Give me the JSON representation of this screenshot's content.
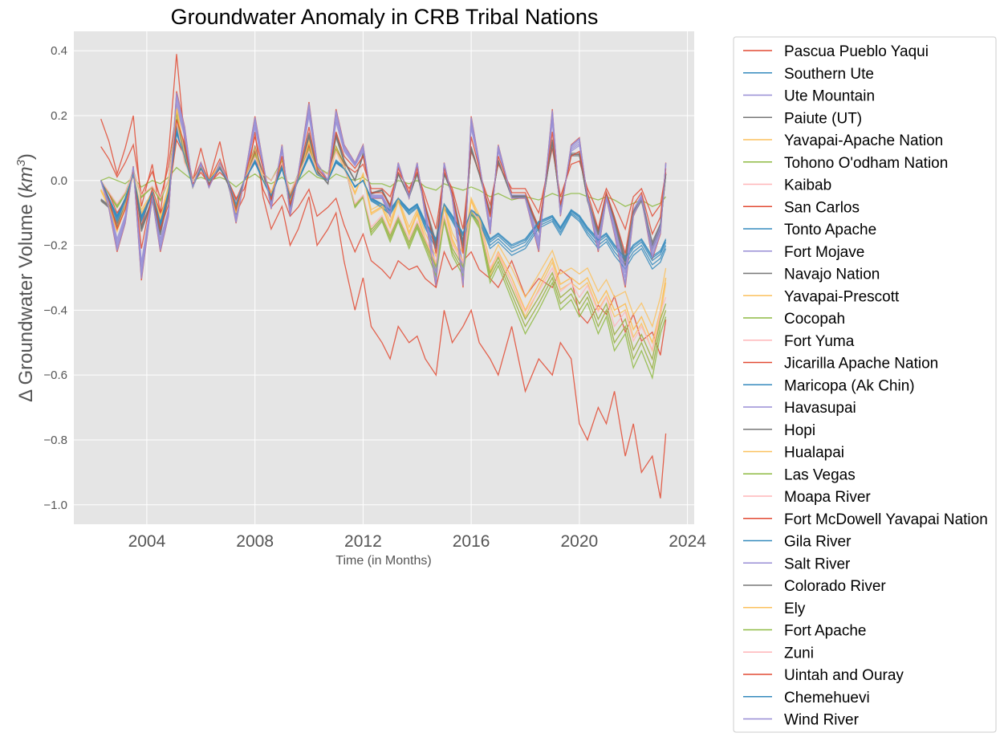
{
  "chart_data": {
    "type": "line",
    "title": "Groundwater Anomaly in CRB Tribal Nations",
    "ylabel_text": "Δ Groundwater Volume (",
    "ylabel_unit": "km",
    "ylabel_exp": "3",
    "ylabel_close": ")",
    "xlabel": "Time (in Months)",
    "xlim": [
      2001.3,
      2024.25
    ],
    "ylim": [
      -1.06,
      0.46
    ],
    "xticks": [
      2004,
      2008,
      2012,
      2016,
      2020,
      2024
    ],
    "xtick_labels": [
      "2004",
      "2008",
      "2012",
      "2016",
      "2020",
      "2024"
    ],
    "yticks": [
      0.4,
      0.2,
      0.0,
      -0.2,
      -0.4,
      -0.6,
      -0.8,
      -1.0
    ],
    "ytick_labels": [
      "0.4",
      "0.2",
      "0.0",
      "−0.2",
      "−0.4",
      "−0.6",
      "−0.8",
      "−1.0"
    ],
    "grid": true,
    "legend_placement": "outside-right",
    "background_color": "#e5e5e5",
    "palette": [
      "#e24a33",
      "#348abd",
      "#988ed5",
      "#777777",
      "#fbc15e",
      "#8eba42",
      "#ffb5b8"
    ],
    "series_names": [
      "Pascua Pueblo Yaqui",
      "Southern Ute",
      "Ute Mountain",
      "Paiute (UT)",
      "Yavapai-Apache Nation",
      "Tohono O'odham Nation",
      "Kaibab",
      "San Carlos",
      "Tonto Apache",
      "Fort Mojave",
      "Navajo Nation",
      "Yavapai-Prescott",
      "Cocopah",
      "Fort Yuma",
      "Jicarilla Apache Nation",
      "Maricopa (Ak Chin)",
      "Havasupai",
      "Hopi",
      "Hualapai",
      "Las Vegas",
      "Moapa River",
      "Fort McDowell Yavapai Nation",
      "Gila River",
      "Salt River",
      "Colorado River",
      "Ely",
      "Fort Apache",
      "Zuni",
      "Uintah and Ouray",
      "Chemehuevi",
      "Wind River"
    ],
    "x": [
      2002.3,
      2002.6,
      2002.9,
      2003.2,
      2003.5,
      2003.8,
      2004.2,
      2004.5,
      2004.8,
      2005.1,
      2005.4,
      2005.7,
      2006.0,
      2006.3,
      2006.7,
      2007.0,
      2007.3,
      2007.6,
      2008.0,
      2008.3,
      2008.6,
      2009.0,
      2009.3,
      2009.6,
      2010.0,
      2010.3,
      2010.7,
      2011.0,
      2011.3,
      2011.7,
      2012.0,
      2012.3,
      2012.7,
      2013.0,
      2013.3,
      2013.7,
      2014.0,
      2014.3,
      2014.7,
      2015.0,
      2015.3,
      2015.7,
      2016.0,
      2016.3,
      2016.7,
      2017.0,
      2017.5,
      2018.0,
      2018.5,
      2019.0,
      2019.3,
      2019.7,
      2020.0,
      2020.3,
      2020.7,
      2021.0,
      2021.3,
      2021.7,
      2022.0,
      2022.3,
      2022.7,
      2023.0,
      2023.2
    ],
    "y_profiles": {
      "ute_like": [
        0.0,
        -0.08,
        -0.2,
        -0.12,
        0.04,
        -0.28,
        -0.05,
        -0.2,
        -0.1,
        0.25,
        0.15,
        -0.02,
        0.05,
        -0.02,
        0.05,
        0.0,
        -0.12,
        0.0,
        0.18,
        0.05,
        -0.08,
        0.1,
        -0.1,
        0.02,
        0.22,
        0.05,
        0.0,
        0.2,
        0.1,
        0.05,
        0.1,
        -0.05,
        -0.05,
        -0.1,
        0.05,
        -0.05,
        0.05,
        -0.1,
        -0.3,
        0.05,
        -0.05,
        -0.3,
        0.18,
        0.05,
        -0.15,
        0.1,
        -0.05,
        -0.05,
        -0.2,
        0.2,
        -0.1,
        0.1,
        0.12,
        -0.05,
        -0.2,
        -0.05,
        -0.15,
        -0.3,
        -0.1,
        -0.05,
        -0.22,
        -0.15,
        0.05
      ],
      "navajo_like": [
        -0.06,
        -0.08,
        -0.14,
        -0.08,
        0.03,
        -0.15,
        -0.06,
        -0.16,
        -0.05,
        0.18,
        0.1,
        -0.02,
        0.04,
        -0.01,
        0.04,
        -0.01,
        -0.1,
        0.0,
        0.1,
        0.02,
        -0.06,
        0.06,
        -0.08,
        0.01,
        0.14,
        0.03,
        -0.01,
        0.14,
        0.06,
        0.0,
        0.08,
        -0.04,
        -0.03,
        -0.08,
        0.02,
        -0.05,
        0.02,
        -0.08,
        -0.2,
        0.02,
        -0.04,
        -0.2,
        0.1,
        0.02,
        -0.1,
        0.06,
        -0.05,
        -0.05,
        -0.15,
        0.12,
        -0.08,
        0.08,
        0.08,
        -0.06,
        -0.16,
        -0.04,
        -0.12,
        -0.25,
        -0.1,
        -0.06,
        -0.2,
        -0.14,
        0.02
      ],
      "cocopah_like": [
        0.0,
        -0.04,
        -0.08,
        -0.04,
        0.03,
        -0.05,
        -0.02,
        -0.06,
        0.0,
        0.2,
        0.06,
        0.0,
        0.04,
        0.0,
        0.04,
        0.0,
        -0.08,
        0.0,
        0.08,
        0.02,
        0.0,
        0.06,
        -0.04,
        0.02,
        0.1,
        0.04,
        0.02,
        0.1,
        0.05,
        -0.08,
        -0.05,
        -0.16,
        -0.12,
        -0.18,
        -0.12,
        -0.2,
        -0.14,
        -0.2,
        -0.28,
        -0.12,
        -0.22,
        -0.28,
        -0.1,
        -0.14,
        -0.3,
        -0.25,
        -0.35,
        -0.45,
        -0.38,
        -0.3,
        -0.38,
        -0.35,
        -0.4,
        -0.36,
        -0.45,
        -0.4,
        -0.5,
        -0.45,
        -0.55,
        -0.5,
        -0.58,
        -0.45,
        -0.4
      ],
      "steep_decline": [
        0.19,
        0.12,
        0.02,
        0.1,
        0.2,
        -0.08,
        0.05,
        -0.1,
        0.08,
        0.39,
        0.12,
        0.0,
        0.1,
        0.0,
        0.12,
        0.0,
        -0.1,
        -0.05,
        0.15,
        -0.05,
        -0.15,
        -0.08,
        -0.2,
        -0.15,
        -0.05,
        -0.2,
        -0.15,
        -0.1,
        -0.25,
        -0.4,
        -0.3,
        -0.45,
        -0.5,
        -0.55,
        -0.45,
        -0.5,
        -0.48,
        -0.55,
        -0.6,
        -0.4,
        -0.5,
        -0.45,
        -0.4,
        -0.5,
        -0.55,
        -0.6,
        -0.45,
        -0.65,
        -0.55,
        -0.6,
        -0.5,
        -0.55,
        -0.75,
        -0.8,
        -0.7,
        -0.75,
        -0.65,
        -0.85,
        -0.75,
        -0.9,
        -0.85,
        -0.98,
        -0.78
      ],
      "gila_like": [
        0.0,
        -0.06,
        -0.12,
        -0.06,
        0.02,
        -0.12,
        -0.04,
        -0.14,
        -0.04,
        0.16,
        0.08,
        -0.02,
        0.04,
        0.0,
        0.04,
        0.0,
        -0.08,
        0.0,
        0.06,
        0.0,
        -0.05,
        0.04,
        -0.06,
        0.0,
        0.08,
        0.02,
        0.0,
        0.06,
        0.04,
        -0.02,
        0.0,
        -0.06,
        -0.08,
        -0.1,
        -0.06,
        -0.1,
        -0.08,
        -0.14,
        -0.2,
        -0.08,
        -0.12,
        -0.18,
        -0.1,
        -0.12,
        -0.2,
        -0.18,
        -0.22,
        -0.2,
        -0.14,
        -0.12,
        -0.16,
        -0.1,
        -0.12,
        -0.16,
        -0.2,
        -0.18,
        -0.22,
        -0.26,
        -0.22,
        -0.2,
        -0.26,
        -0.24,
        -0.2
      ],
      "tohono_flat": [
        0.0,
        0.01,
        0.0,
        -0.01,
        0.01,
        -0.02,
        0.0,
        -0.01,
        0.01,
        0.04,
        0.02,
        0.0,
        0.01,
        0.0,
        0.01,
        0.0,
        -0.02,
        0.0,
        0.02,
        0.0,
        -0.01,
        0.01,
        -0.01,
        0.0,
        0.03,
        0.01,
        0.0,
        0.02,
        0.01,
        0.0,
        0.01,
        -0.01,
        -0.01,
        -0.02,
        0.0,
        -0.01,
        0.0,
        -0.02,
        -0.03,
        -0.01,
        -0.02,
        -0.03,
        -0.02,
        -0.03,
        -0.05,
        -0.04,
        -0.06,
        -0.05,
        -0.06,
        -0.04,
        -0.05,
        -0.04,
        -0.04,
        -0.05,
        -0.06,
        -0.05,
        -0.06,
        -0.08,
        -0.07,
        -0.06,
        -0.08,
        -0.07,
        -0.05
      ],
      "mid_decline": [
        -0.03,
        -0.08,
        -0.15,
        -0.08,
        0.02,
        -0.1,
        -0.04,
        -0.12,
        -0.02,
        0.22,
        0.08,
        -0.02,
        0.04,
        0.0,
        0.05,
        0.0,
        -0.1,
        0.0,
        0.1,
        0.0,
        -0.04,
        0.06,
        -0.06,
        0.0,
        0.12,
        0.02,
        0.0,
        0.1,
        0.04,
        -0.04,
        0.02,
        -0.1,
        -0.08,
        -0.14,
        -0.06,
        -0.16,
        -0.1,
        -0.18,
        -0.26,
        -0.08,
        -0.18,
        -0.25,
        -0.06,
        -0.12,
        -0.28,
        -0.22,
        -0.3,
        -0.4,
        -0.32,
        -0.24,
        -0.32,
        -0.3,
        -0.32,
        -0.3,
        -0.38,
        -0.34,
        -0.4,
        -0.38,
        -0.46,
        -0.42,
        -0.5,
        -0.4,
        -0.3
      ]
    },
    "series_profile": [
      "steep_decline",
      "gila_like",
      "ute_like",
      "navajo_like",
      "mid_decline",
      "tohono_flat",
      "cocopah_like",
      "steep_decline",
      "gila_like",
      "ute_like",
      "navajo_like",
      "mid_decline",
      "cocopah_like",
      "cocopah_like",
      "ute_like",
      "gila_like",
      "ute_like",
      "navajo_like",
      "mid_decline",
      "cocopah_like",
      "cocopah_like",
      "ute_like",
      "gila_like",
      "ute_like",
      "navajo_like",
      "mid_decline",
      "cocopah_like",
      "cocopah_like",
      "ute_like",
      "gila_like",
      "ute_like"
    ],
    "series_scale": [
      1.0,
      1.0,
      1.0,
      1.0,
      1.0,
      1.0,
      1.0,
      0.55,
      0.9,
      0.9,
      1.0,
      1.05,
      1.0,
      0.95,
      1.1,
      0.95,
      1.05,
      1.05,
      0.9,
      1.05,
      0.95,
      0.5,
      1.05,
      0.95,
      0.95,
      1.0,
      0.95,
      0.9,
      0.75,
      0.92,
      1.08
    ]
  }
}
